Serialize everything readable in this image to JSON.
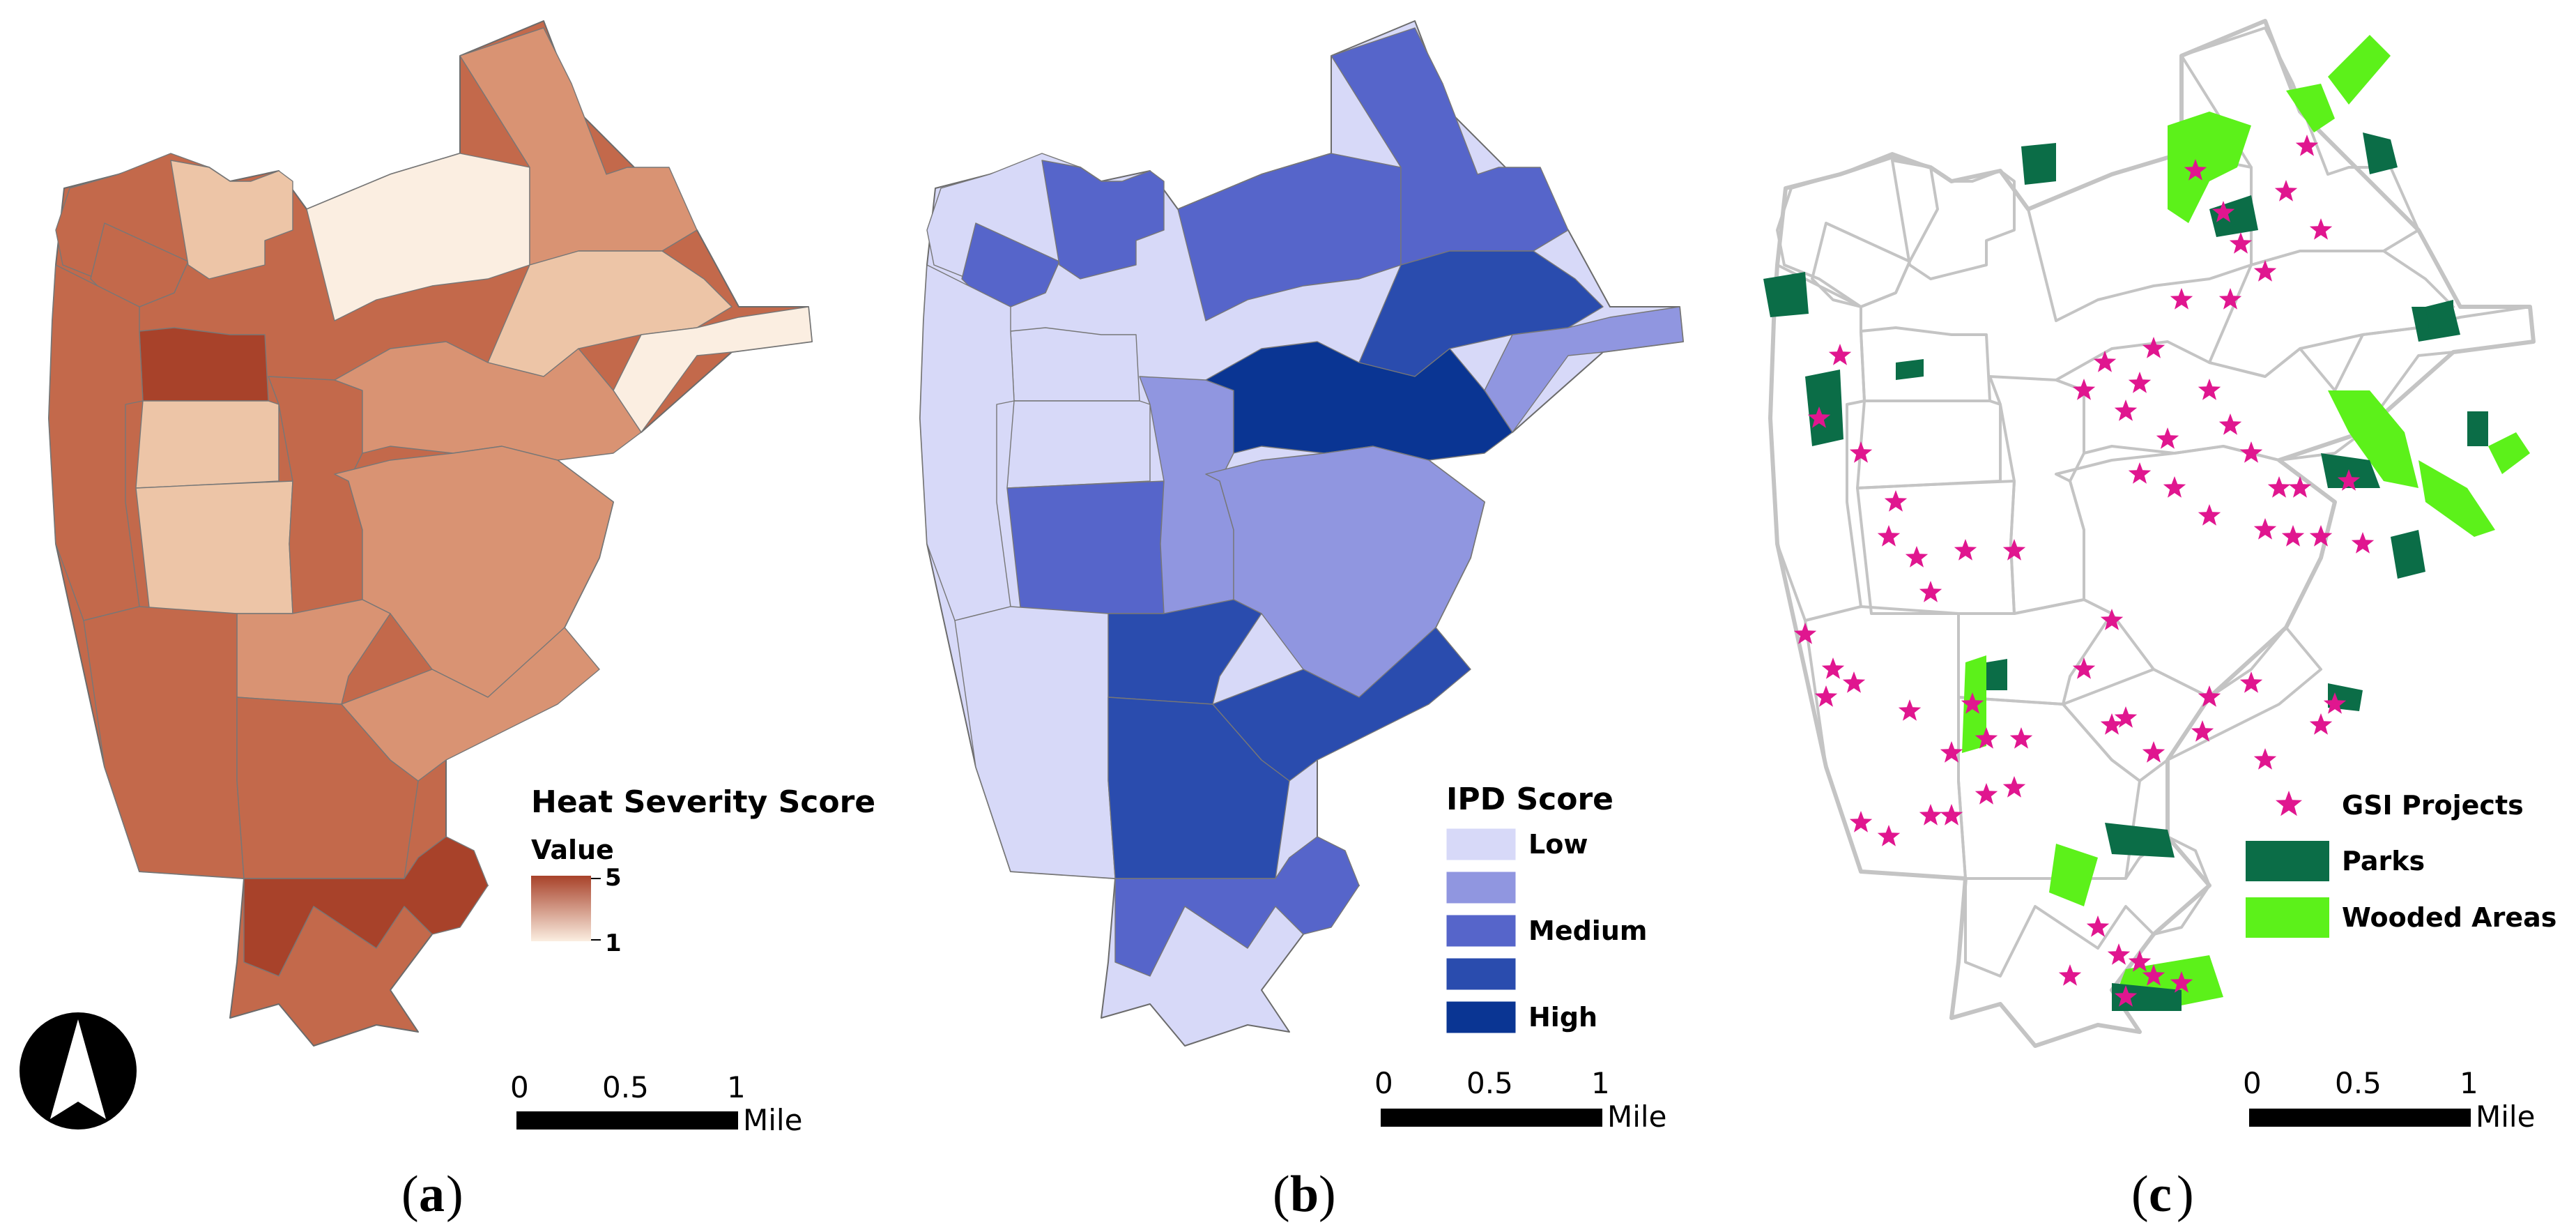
{
  "panels": [
    {
      "id": "a",
      "caption_letter": "a",
      "legend": {
        "title": "Heat Severity Score",
        "subtitle": "Value",
        "max_label": "5",
        "min_label": "1",
        "ramp_colors": [
          "#a8422a",
          "#fbeee1"
        ]
      }
    },
    {
      "id": "b",
      "caption_letter": "b",
      "legend": {
        "title": "IPD Score",
        "classes": [
          {
            "label": "Low",
            "color": "#d7d9f8"
          },
          {
            "label": "",
            "color": "#9096e0"
          },
          {
            "label": "Medium",
            "color": "#5665ca"
          },
          {
            "label": "",
            "color": "#2a4cae"
          },
          {
            "label": "High",
            "color": "#0a3593"
          }
        ]
      }
    },
    {
      "id": "c",
      "caption_letter": "c",
      "legend": {
        "items": [
          {
            "label": "GSI Projects",
            "symbol": "star",
            "color": "#e0168f"
          },
          {
            "label": "Parks",
            "symbol": "box",
            "color": "#0b6d47"
          },
          {
            "label": "Wooded Areas",
            "symbol": "box",
            "color": "#5cf11a"
          }
        ]
      }
    }
  ],
  "scale_bar": {
    "ticks": [
      "0",
      "0.5",
      "1"
    ],
    "unit": "Mile"
  },
  "north_arrow": {
    "icon": "north-arrow-icon"
  },
  "colors": {
    "heat": [
      "#fbeee1",
      "#edc5a7",
      "#d99373",
      "#c3694b",
      "#a8422a"
    ],
    "ipd": [
      "#d7d9f8",
      "#9096e0",
      "#5665ca",
      "#2a4cae",
      "#0a3593"
    ],
    "outline": "#c4c4c4",
    "gsi": "#e0168f",
    "park": "#0b6d47",
    "wooded": "#5cf11a"
  }
}
